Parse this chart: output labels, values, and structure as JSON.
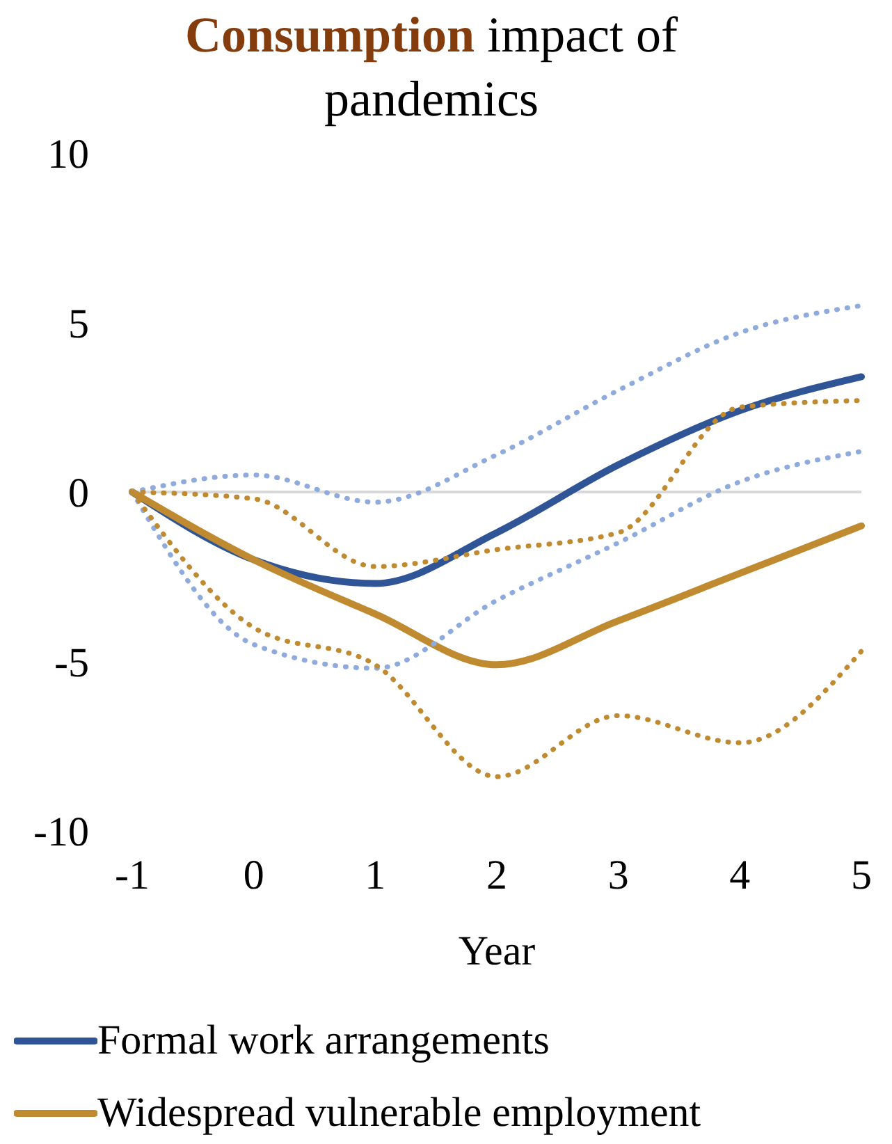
{
  "chart_data": {
    "type": "line",
    "title": "Consumption impact of pandemics",
    "xlabel": "Year",
    "categories": [
      "-1",
      "0",
      "1",
      "2",
      "3",
      "4",
      "5"
    ],
    "ylim": [
      -10,
      10
    ],
    "yticks": [
      -10,
      -5,
      0,
      5,
      10
    ],
    "grid": false,
    "legend": "bottom",
    "ref_lines": [
      {
        "axis": "y",
        "value": 0,
        "color": "#d9d9d9"
      }
    ],
    "series": [
      {
        "name": "Formal work arrangements",
        "color": "#2f5597",
        "line_style": "solid",
        "values": [
          0,
          -2.0,
          -2.7,
          -1.2,
          0.8,
          2.4,
          3.4
        ]
      },
      {
        "name": "Widespread vulnerable employment",
        "color": "#c08a30",
        "line_style": "solid",
        "values": [
          0,
          -2.0,
          -3.6,
          -5.1,
          -3.8,
          -2.4,
          -1.0
        ]
      },
      {
        "color": "#8faadc",
        "line_style": "dotted",
        "values": [
          0,
          0.5,
          -0.3,
          1.1,
          3.0,
          4.7,
          5.5
        ]
      },
      {
        "color": "#8faadc",
        "line_style": "dotted",
        "values": [
          0,
          -4.5,
          -5.2,
          -3.2,
          -1.5,
          0.3,
          1.2
        ]
      },
      {
        "color": "#c08a30",
        "line_style": "dotted",
        "values": [
          0,
          -0.2,
          -2.2,
          -1.7,
          -1.2,
          2.5,
          2.7
        ]
      },
      {
        "color": "#c08a30",
        "line_style": "dotted",
        "values": [
          0,
          -4.0,
          -5.1,
          -8.4,
          -6.6,
          -7.4,
          -4.7
        ]
      }
    ]
  }
}
